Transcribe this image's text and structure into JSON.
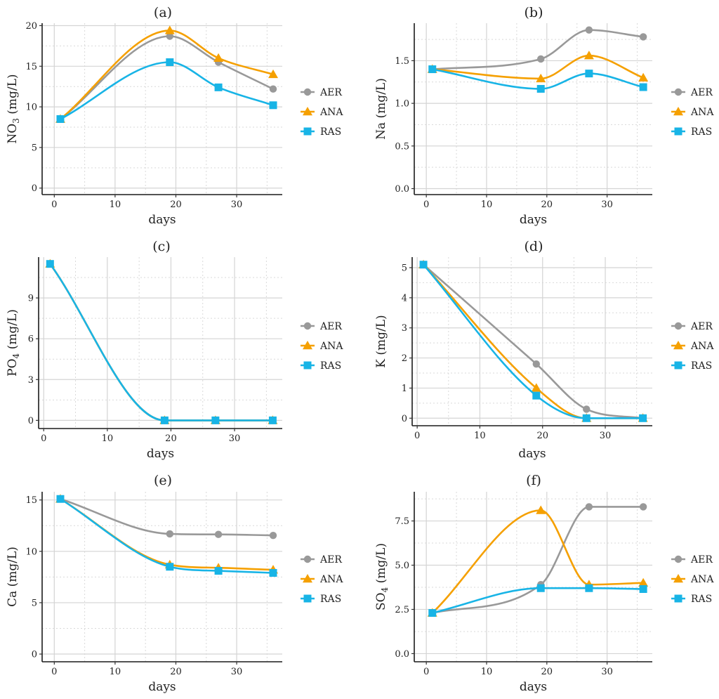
{
  "colors": {
    "AER": "#999999",
    "ANA": "#F5A000",
    "RAS": "#18B4E6"
  },
  "legend": [
    {
      "name": "AER",
      "marker": "circle"
    },
    {
      "name": "ANA",
      "marker": "triangle"
    },
    {
      "name": "RAS",
      "marker": "square"
    }
  ],
  "chart_data": [
    {
      "type": "line",
      "panel": "(a)",
      "title": "(a)",
      "xlabel": "days",
      "ylabel": "NO",
      "ylabel_sub": "3",
      "ylabel_unit": " (mg/L)",
      "xlim": [
        -2,
        37.5
      ],
      "ylim": [
        -0.8,
        20.3
      ],
      "xticks": [
        0,
        10,
        20,
        30
      ],
      "yticks": [
        0,
        5,
        10,
        15,
        20
      ],
      "ytick_labels": [
        "0",
        "5",
        "10",
        "15",
        "20"
      ],
      "x": [
        1,
        19,
        27,
        36
      ],
      "series": [
        {
          "name": "AER",
          "values": [
            8.5,
            18.7,
            15.5,
            12.2
          ]
        },
        {
          "name": "ANA",
          "values": [
            8.5,
            19.4,
            16.0,
            14.0
          ]
        },
        {
          "name": "RAS",
          "values": [
            8.5,
            15.5,
            12.4,
            10.2
          ]
        }
      ]
    },
    {
      "type": "line",
      "panel": "(b)",
      "title": "(b)",
      "xlabel": "days",
      "ylabel": "Na (mg/L)",
      "ylabel_sub": "",
      "ylabel_unit": "",
      "xlim": [
        -2,
        37.5
      ],
      "ylim": [
        -0.07,
        1.94
      ],
      "xticks": [
        0,
        10,
        20,
        30
      ],
      "yticks": [
        0,
        0.5,
        1.0,
        1.5
      ],
      "ytick_labels": [
        "0.0",
        "0.5",
        "1.0",
        "1.5"
      ],
      "x": [
        1,
        19,
        27,
        36
      ],
      "series": [
        {
          "name": "AER",
          "values": [
            1.4,
            1.52,
            1.86,
            1.78
          ]
        },
        {
          "name": "ANA",
          "values": [
            1.4,
            1.29,
            1.56,
            1.3
          ]
        },
        {
          "name": "RAS",
          "values": [
            1.4,
            1.17,
            1.35,
            1.19
          ]
        }
      ]
    },
    {
      "type": "line",
      "panel": "(c)",
      "title": "(c)",
      "xlabel": "days",
      "ylabel": "PO",
      "ylabel_sub": "4",
      "ylabel_unit": " (mg/L)",
      "xlim": [
        -0.8,
        37.5
      ],
      "ylim": [
        -0.6,
        12.0
      ],
      "xticks": [
        0,
        10,
        20,
        30
      ],
      "yticks": [
        0,
        3,
        6,
        9
      ],
      "ytick_labels": [
        "0",
        "3",
        "6",
        "9"
      ],
      "x": [
        1,
        19,
        27,
        36
      ],
      "series": [
        {
          "name": "AER",
          "values": [
            11.5,
            0.0,
            0.0,
            0.0
          ]
        },
        {
          "name": "ANA",
          "values": [
            11.5,
            0.0,
            0.0,
            0.0
          ]
        },
        {
          "name": "RAS",
          "values": [
            11.5,
            0.0,
            0.0,
            0.0
          ]
        }
      ]
    },
    {
      "type": "line",
      "panel": "(d)",
      "title": "(d)",
      "xlabel": "days",
      "ylabel": "K (mg/L)",
      "ylabel_sub": "",
      "ylabel_unit": "",
      "xlim": [
        -0.8,
        37.5
      ],
      "ylim": [
        -0.25,
        5.35
      ],
      "xticks": [
        0,
        10,
        20,
        30
      ],
      "yticks": [
        0,
        1,
        2,
        3,
        4,
        5
      ],
      "ytick_labels": [
        "0",
        "1",
        "2",
        "3",
        "4",
        "5"
      ],
      "x": [
        1,
        19,
        27,
        36
      ],
      "series": [
        {
          "name": "AER",
          "values": [
            5.1,
            1.8,
            0.3,
            0.0
          ]
        },
        {
          "name": "ANA",
          "values": [
            5.1,
            1.0,
            0.0,
            0.0
          ]
        },
        {
          "name": "RAS",
          "values": [
            5.1,
            0.75,
            0.0,
            0.0
          ]
        }
      ]
    },
    {
      "type": "line",
      "panel": "(e)",
      "title": "(e)",
      "xlabel": "days",
      "ylabel": "Ca (mg/L)",
      "ylabel_sub": "",
      "ylabel_unit": "",
      "xlim": [
        -2,
        37.5
      ],
      "ylim": [
        -0.75,
        15.8
      ],
      "xticks": [
        0,
        10,
        20,
        30
      ],
      "yticks": [
        0,
        5,
        10,
        15
      ],
      "ytick_labels": [
        "0",
        "5",
        "10",
        "15"
      ],
      "x": [
        1,
        19,
        27,
        36
      ],
      "series": [
        {
          "name": "AER",
          "values": [
            15.1,
            11.7,
            11.65,
            11.55
          ]
        },
        {
          "name": "ANA",
          "values": [
            15.1,
            8.7,
            8.4,
            8.2
          ]
        },
        {
          "name": "RAS",
          "values": [
            15.1,
            8.5,
            8.1,
            7.9
          ]
        }
      ]
    },
    {
      "type": "line",
      "panel": "(f)",
      "title": "(f)",
      "xlabel": "days",
      "ylabel": "SO",
      "ylabel_sub": "4",
      "ylabel_unit": " (mg/L)",
      "xlim": [
        -2,
        37.5
      ],
      "ylim": [
        -0.46,
        9.15
      ],
      "xticks": [
        0,
        10,
        20,
        30
      ],
      "yticks": [
        0,
        2.5,
        5.0,
        7.5
      ],
      "ytick_labels": [
        "0.0",
        "2.5",
        "5.0",
        "7.5"
      ],
      "x": [
        1,
        19,
        27,
        36
      ],
      "series": [
        {
          "name": "AER",
          "values": [
            2.3,
            3.9,
            8.3,
            8.3
          ]
        },
        {
          "name": "ANA",
          "values": [
            2.3,
            8.1,
            3.9,
            4.0
          ]
        },
        {
          "name": "RAS",
          "values": [
            2.3,
            3.7,
            3.7,
            3.65
          ]
        }
      ]
    }
  ]
}
